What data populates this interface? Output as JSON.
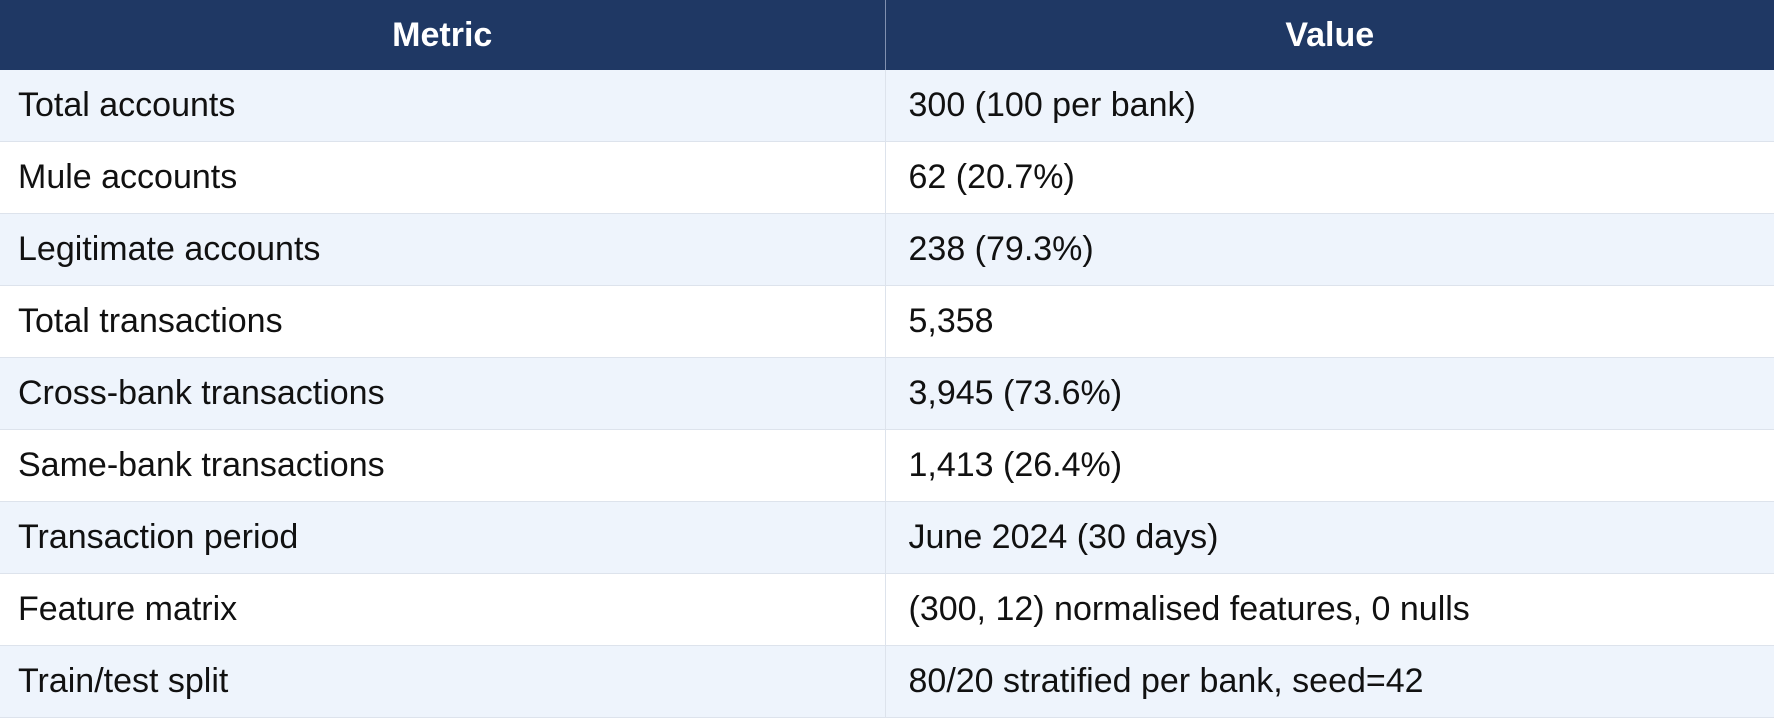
{
  "table": {
    "headers": [
      "Metric",
      "Value"
    ],
    "rows": [
      {
        "metric": "Total accounts",
        "value": "300 (100 per bank)"
      },
      {
        "metric": "Mule accounts",
        "value": "62 (20.7%)"
      },
      {
        "metric": "Legitimate accounts",
        "value": "238 (79.3%)"
      },
      {
        "metric": "Total transactions",
        "value": "5,358"
      },
      {
        "metric": "Cross-bank transactions",
        "value": "3,945 (73.6%)"
      },
      {
        "metric": "Same-bank transactions",
        "value": "1,413 (26.4%)"
      },
      {
        "metric": "Transaction period",
        "value": "June 2024 (30 days)"
      },
      {
        "metric": "Feature matrix",
        "value": "(300, 12) normalised features, 0 nulls"
      },
      {
        "metric": "Train/test split",
        "value": "80/20 stratified per bank, seed=42"
      }
    ]
  },
  "colors": {
    "header_background": "#1f3864",
    "header_text": "#ffffff",
    "row_stripe": "#eef4fc",
    "row_plain": "#ffffff"
  }
}
